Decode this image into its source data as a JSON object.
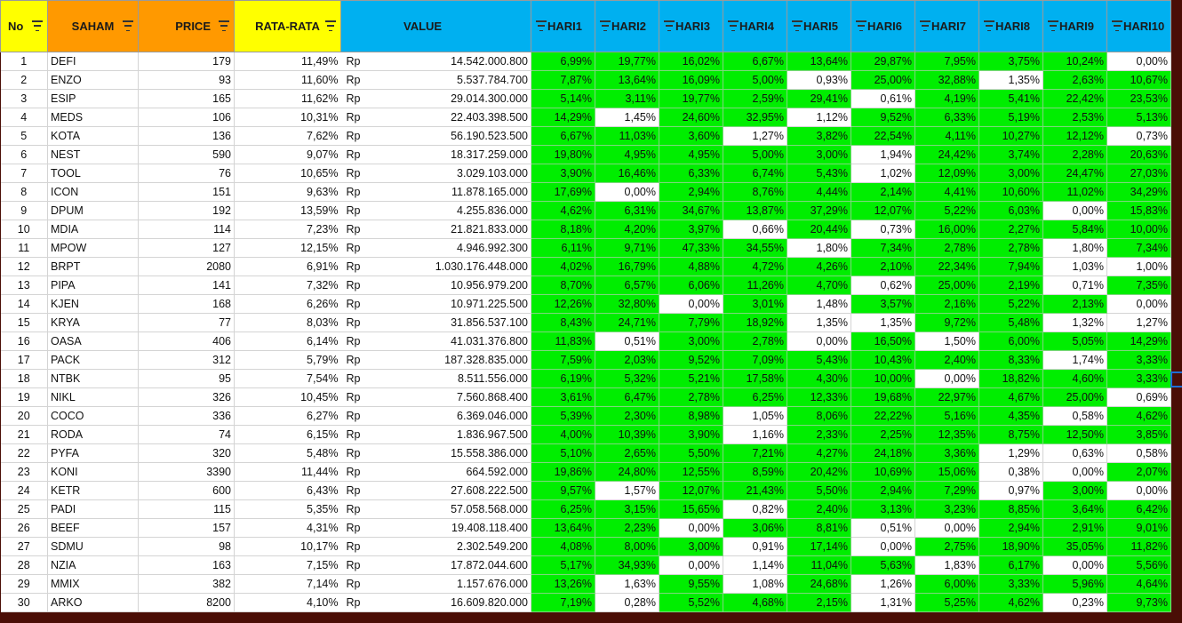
{
  "headers": {
    "no": "No",
    "saham": "SAHAM",
    "price": "PRICE",
    "rata": "RATA-RATA",
    "value": "VALUE",
    "hari": [
      "HARI1",
      "HARI2",
      "HARI3",
      "HARI4",
      "HARI5",
      "HARI6",
      "HARI7",
      "HARI8",
      "HARI9",
      "HARI10"
    ]
  },
  "colors": {
    "yellow": "#ffff00",
    "orange": "#ff9900",
    "blue": "#00b0f0",
    "green": "#00ee00",
    "frame": "#4a0e06"
  },
  "currency": "Rp",
  "rows": [
    {
      "no": "1",
      "saham": "DEFI",
      "price": "179",
      "rata": "11,49%",
      "value": "14.542.000.800",
      "hari": [
        "6,99%",
        "19,77%",
        "16,02%",
        "6,67%",
        "13,64%",
        "29,87%",
        "7,95%",
        "3,75%",
        "10,24%",
        "0,00%"
      ],
      "green": [
        1,
        1,
        1,
        1,
        1,
        1,
        1,
        1,
        1,
        0
      ]
    },
    {
      "no": "2",
      "saham": "ENZO",
      "price": "93",
      "rata": "11,60%",
      "value": "5.537.784.700",
      "hari": [
        "7,87%",
        "13,64%",
        "16,09%",
        "5,00%",
        "0,93%",
        "25,00%",
        "32,88%",
        "1,35%",
        "2,63%",
        "10,67%"
      ],
      "green": [
        1,
        1,
        1,
        1,
        0,
        1,
        1,
        0,
        1,
        1
      ]
    },
    {
      "no": "3",
      "saham": "ESIP",
      "price": "165",
      "rata": "11,62%",
      "value": "29.014.300.000",
      "hari": [
        "5,14%",
        "3,11%",
        "19,77%",
        "2,59%",
        "29,41%",
        "0,61%",
        "4,19%",
        "5,41%",
        "22,42%",
        "23,53%"
      ],
      "green": [
        1,
        1,
        1,
        1,
        1,
        0,
        1,
        1,
        1,
        1
      ]
    },
    {
      "no": "4",
      "saham": "MEDS",
      "price": "106",
      "rata": "10,31%",
      "value": "22.403.398.500",
      "hari": [
        "14,29%",
        "1,45%",
        "24,60%",
        "32,95%",
        "1,12%",
        "9,52%",
        "6,33%",
        "5,19%",
        "2,53%",
        "5,13%"
      ],
      "green": [
        1,
        0,
        1,
        1,
        0,
        1,
        1,
        1,
        1,
        1
      ]
    },
    {
      "no": "5",
      "saham": "KOTA",
      "price": "136",
      "rata": "7,62%",
      "value": "56.190.523.500",
      "hari": [
        "6,67%",
        "11,03%",
        "3,60%",
        "1,27%",
        "3,82%",
        "22,54%",
        "4,11%",
        "10,27%",
        "12,12%",
        "0,73%"
      ],
      "green": [
        1,
        1,
        1,
        0,
        1,
        1,
        1,
        1,
        1,
        0
      ]
    },
    {
      "no": "6",
      "saham": "NEST",
      "price": "590",
      "rata": "9,07%",
      "value": "18.317.259.000",
      "hari": [
        "19,80%",
        "4,95%",
        "4,95%",
        "5,00%",
        "3,00%",
        "1,94%",
        "24,42%",
        "3,74%",
        "2,28%",
        "20,63%"
      ],
      "green": [
        1,
        1,
        1,
        1,
        1,
        0,
        1,
        1,
        1,
        1
      ]
    },
    {
      "no": "7",
      "saham": "TOOL",
      "price": "76",
      "rata": "10,65%",
      "value": "3.029.103.000",
      "hari": [
        "3,90%",
        "16,46%",
        "6,33%",
        "6,74%",
        "5,43%",
        "1,02%",
        "12,09%",
        "3,00%",
        "24,47%",
        "27,03%"
      ],
      "green": [
        1,
        1,
        1,
        1,
        1,
        0,
        1,
        1,
        1,
        1
      ]
    },
    {
      "no": "8",
      "saham": "ICON",
      "price": "151",
      "rata": "9,63%",
      "value": "11.878.165.000",
      "hari": [
        "17,69%",
        "0,00%",
        "2,94%",
        "8,76%",
        "4,44%",
        "2,14%",
        "4,41%",
        "10,60%",
        "11,02%",
        "34,29%"
      ],
      "green": [
        1,
        0,
        1,
        1,
        1,
        1,
        1,
        1,
        1,
        1
      ]
    },
    {
      "no": "9",
      "saham": "DPUM",
      "price": "192",
      "rata": "13,59%",
      "value": "4.255.836.000",
      "hari": [
        "4,62%",
        "6,31%",
        "34,67%",
        "13,87%",
        "37,29%",
        "12,07%",
        "5,22%",
        "6,03%",
        "0,00%",
        "15,83%"
      ],
      "green": [
        1,
        1,
        1,
        1,
        1,
        1,
        1,
        1,
        0,
        1
      ]
    },
    {
      "no": "10",
      "saham": "MDIA",
      "price": "114",
      "rata": "7,23%",
      "value": "21.821.833.000",
      "hari": [
        "8,18%",
        "4,20%",
        "3,97%",
        "0,66%",
        "20,44%",
        "0,73%",
        "16,00%",
        "2,27%",
        "5,84%",
        "10,00%"
      ],
      "green": [
        1,
        1,
        1,
        0,
        1,
        0,
        1,
        1,
        1,
        1
      ]
    },
    {
      "no": "11",
      "saham": "MPOW",
      "price": "127",
      "rata": "12,15%",
      "value": "4.946.992.300",
      "hari": [
        "6,11%",
        "9,71%",
        "47,33%",
        "34,55%",
        "1,80%",
        "7,34%",
        "2,78%",
        "2,78%",
        "1,80%",
        "7,34%"
      ],
      "green": [
        1,
        1,
        1,
        1,
        0,
        1,
        1,
        1,
        0,
        1
      ]
    },
    {
      "no": "12",
      "saham": "BRPT",
      "price": "2080",
      "rata": "6,91%",
      "value": "1.030.176.448.000",
      "hari": [
        "4,02%",
        "16,79%",
        "4,88%",
        "4,72%",
        "4,26%",
        "2,10%",
        "22,34%",
        "7,94%",
        "1,03%",
        "1,00%"
      ],
      "green": [
        1,
        1,
        1,
        1,
        1,
        1,
        1,
        1,
        0,
        0
      ]
    },
    {
      "no": "13",
      "saham": "PIPA",
      "price": "141",
      "rata": "7,32%",
      "value": "10.956.979.200",
      "hari": [
        "8,70%",
        "6,57%",
        "6,06%",
        "11,26%",
        "4,70%",
        "0,62%",
        "25,00%",
        "2,19%",
        "0,71%",
        "7,35%"
      ],
      "green": [
        1,
        1,
        1,
        1,
        1,
        0,
        1,
        1,
        0,
        1
      ]
    },
    {
      "no": "14",
      "saham": "KJEN",
      "price": "168",
      "rata": "6,26%",
      "value": "10.971.225.500",
      "hari": [
        "12,26%",
        "32,80%",
        "0,00%",
        "3,01%",
        "1,48%",
        "3,57%",
        "2,16%",
        "5,22%",
        "2,13%",
        "0,00%"
      ],
      "green": [
        1,
        1,
        0,
        1,
        0,
        1,
        1,
        1,
        1,
        0
      ]
    },
    {
      "no": "15",
      "saham": "KRYA",
      "price": "77",
      "rata": "8,03%",
      "value": "31.856.537.100",
      "hari": [
        "8,43%",
        "24,71%",
        "7,79%",
        "18,92%",
        "1,35%",
        "1,35%",
        "9,72%",
        "5,48%",
        "1,32%",
        "1,27%"
      ],
      "green": [
        1,
        1,
        1,
        1,
        0,
        0,
        1,
        1,
        0,
        0
      ]
    },
    {
      "no": "16",
      "saham": "OASA",
      "price": "406",
      "rata": "6,14%",
      "value": "41.031.376.800",
      "hari": [
        "11,83%",
        "0,51%",
        "3,00%",
        "2,78%",
        "0,00%",
        "16,50%",
        "1,50%",
        "6,00%",
        "5,05%",
        "14,29%"
      ],
      "green": [
        1,
        0,
        1,
        1,
        0,
        1,
        0,
        1,
        1,
        1
      ]
    },
    {
      "no": "17",
      "saham": "PACK",
      "price": "312",
      "rata": "5,79%",
      "value": "187.328.835.000",
      "hari": [
        "7,59%",
        "2,03%",
        "9,52%",
        "7,09%",
        "5,43%",
        "10,43%",
        "2,40%",
        "8,33%",
        "1,74%",
        "3,33%"
      ],
      "green": [
        1,
        1,
        1,
        1,
        1,
        1,
        1,
        1,
        0,
        1
      ]
    },
    {
      "no": "18",
      "saham": "NTBK",
      "price": "95",
      "rata": "7,54%",
      "value": "8.511.556.000",
      "hari": [
        "6,19%",
        "5,32%",
        "5,21%",
        "17,58%",
        "4,30%",
        "10,00%",
        "0,00%",
        "18,82%",
        "4,60%",
        "3,33%"
      ],
      "green": [
        1,
        1,
        1,
        1,
        1,
        1,
        0,
        1,
        1,
        1
      ]
    },
    {
      "no": "19",
      "saham": "NIKL",
      "price": "326",
      "rata": "10,45%",
      "value": "7.560.868.400",
      "hari": [
        "3,61%",
        "6,47%",
        "2,78%",
        "6,25%",
        "12,33%",
        "19,68%",
        "22,97%",
        "4,67%",
        "25,00%",
        "0,69%"
      ],
      "green": [
        1,
        1,
        1,
        1,
        1,
        1,
        1,
        1,
        1,
        0
      ]
    },
    {
      "no": "20",
      "saham": "COCO",
      "price": "336",
      "rata": "6,27%",
      "value": "6.369.046.000",
      "hari": [
        "5,39%",
        "2,30%",
        "8,98%",
        "1,05%",
        "8,06%",
        "22,22%",
        "5,16%",
        "4,35%",
        "0,58%",
        "4,62%"
      ],
      "green": [
        1,
        1,
        1,
        0,
        1,
        1,
        1,
        1,
        0,
        1
      ]
    },
    {
      "no": "21",
      "saham": "RODA",
      "price": "74",
      "rata": "6,15%",
      "value": "1.836.967.500",
      "hari": [
        "4,00%",
        "10,39%",
        "3,90%",
        "1,16%",
        "2,33%",
        "2,25%",
        "12,35%",
        "8,75%",
        "12,50%",
        "3,85%"
      ],
      "green": [
        1,
        1,
        1,
        0,
        1,
        1,
        1,
        1,
        1,
        1
      ]
    },
    {
      "no": "22",
      "saham": "PYFA",
      "price": "320",
      "rata": "5,48%",
      "value": "15.558.386.000",
      "hari": [
        "5,10%",
        "2,65%",
        "5,50%",
        "7,21%",
        "4,27%",
        "24,18%",
        "3,36%",
        "1,29%",
        "0,63%",
        "0,58%"
      ],
      "green": [
        1,
        1,
        1,
        1,
        1,
        1,
        1,
        0,
        0,
        0
      ]
    },
    {
      "no": "23",
      "saham": "KONI",
      "price": "3390",
      "rata": "11,44%",
      "value": "664.592.000",
      "hari": [
        "19,86%",
        "24,80%",
        "12,55%",
        "8,59%",
        "20,42%",
        "10,69%",
        "15,06%",
        "0,38%",
        "0,00%",
        "2,07%"
      ],
      "green": [
        1,
        1,
        1,
        1,
        1,
        1,
        1,
        0,
        0,
        1
      ]
    },
    {
      "no": "24",
      "saham": "KETR",
      "price": "600",
      "rata": "6,43%",
      "value": "27.608.222.500",
      "hari": [
        "9,57%",
        "1,57%",
        "12,07%",
        "21,43%",
        "5,50%",
        "2,94%",
        "7,29%",
        "0,97%",
        "3,00%",
        "0,00%"
      ],
      "green": [
        1,
        0,
        1,
        1,
        1,
        1,
        1,
        0,
        1,
        0
      ]
    },
    {
      "no": "25",
      "saham": "PADI",
      "price": "115",
      "rata": "5,35%",
      "value": "57.058.568.000",
      "hari": [
        "6,25%",
        "3,15%",
        "15,65%",
        "0,82%",
        "2,40%",
        "3,13%",
        "3,23%",
        "8,85%",
        "3,64%",
        "6,42%"
      ],
      "green": [
        1,
        1,
        1,
        0,
        1,
        1,
        1,
        1,
        1,
        1
      ]
    },
    {
      "no": "26",
      "saham": "BEEF",
      "price": "157",
      "rata": "4,31%",
      "value": "19.408.118.400",
      "hari": [
        "13,64%",
        "2,23%",
        "0,00%",
        "3,06%",
        "8,81%",
        "0,51%",
        "0,00%",
        "2,94%",
        "2,91%",
        "9,01%"
      ],
      "green": [
        1,
        1,
        0,
        1,
        1,
        0,
        0,
        1,
        1,
        1
      ]
    },
    {
      "no": "27",
      "saham": "SDMU",
      "price": "98",
      "rata": "10,17%",
      "value": "2.302.549.200",
      "hari": [
        "4,08%",
        "8,00%",
        "3,00%",
        "0,91%",
        "17,14%",
        "0,00%",
        "2,75%",
        "18,90%",
        "35,05%",
        "11,82%"
      ],
      "green": [
        1,
        1,
        1,
        0,
        1,
        0,
        1,
        1,
        1,
        1
      ]
    },
    {
      "no": "28",
      "saham": "NZIA",
      "price": "163",
      "rata": "7,15%",
      "value": "17.872.044.600",
      "hari": [
        "5,17%",
        "34,93%",
        "0,00%",
        "1,14%",
        "11,04%",
        "5,63%",
        "1,83%",
        "6,17%",
        "0,00%",
        "5,56%"
      ],
      "green": [
        1,
        1,
        0,
        0,
        1,
        1,
        0,
        1,
        0,
        1
      ]
    },
    {
      "no": "29",
      "saham": "MMIX",
      "price": "382",
      "rata": "7,14%",
      "value": "1.157.676.000",
      "hari": [
        "13,26%",
        "1,63%",
        "9,55%",
        "1,08%",
        "24,68%",
        "1,26%",
        "6,00%",
        "3,33%",
        "5,96%",
        "4,64%"
      ],
      "green": [
        1,
        0,
        1,
        0,
        1,
        0,
        1,
        1,
        1,
        1
      ]
    },
    {
      "no": "30",
      "saham": "ARKO",
      "price": "8200",
      "rata": "4,10%",
      "value": "16.609.820.000",
      "hari": [
        "7,19%",
        "0,28%",
        "5,52%",
        "4,68%",
        "2,15%",
        "1,31%",
        "5,25%",
        "4,62%",
        "0,23%",
        "9,73%"
      ],
      "green": [
        1,
        0,
        1,
        1,
        1,
        0,
        1,
        1,
        0,
        1
      ]
    }
  ]
}
